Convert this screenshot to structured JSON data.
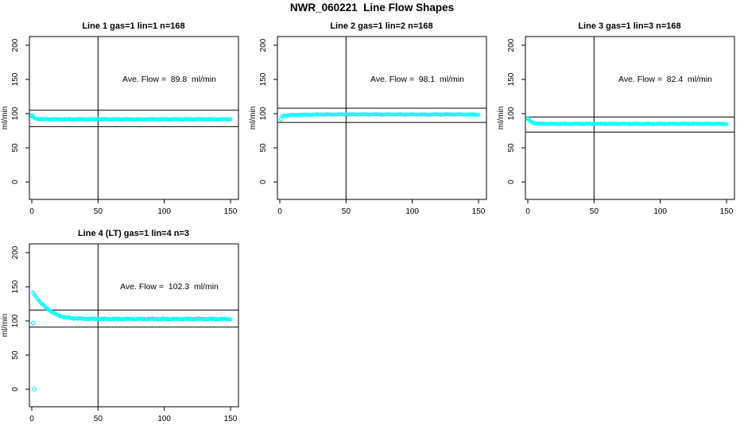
{
  "figure_title": "NWR_060221  Line Flow Shapes",
  "chart_data": {
    "type": "scatter",
    "title": "NWR_060221  Line Flow Shapes",
    "xlabel": "",
    "ylabel": "ml/min",
    "x_ticks": [
      0,
      50,
      100,
      150
    ],
    "y_ticks": [
      0,
      50,
      100,
      150,
      200
    ],
    "x_range": [
      0,
      150
    ],
    "y_range": [
      0,
      200
    ],
    "grid": false,
    "point_color": "#00FFFF",
    "line_color": "#000000",
    "vline_x": 50,
    "plots": [
      {
        "title": "Line 1 gas=1 lin=1 n=168",
        "annotation": "Ave. Flow =  89.8  ml/min",
        "ave_flow_ml_min": 89.8,
        "hlines": [
          105,
          81
        ],
        "noise": 0.5,
        "anchors": [
          [
            0,
            97
          ],
          [
            1,
            95.2
          ],
          [
            2,
            93.5
          ],
          [
            3,
            92.6
          ],
          [
            4,
            92.2
          ],
          [
            6,
            92.0
          ],
          [
            10,
            91.8
          ],
          [
            20,
            91.7
          ],
          [
            50,
            91.8
          ],
          [
            80,
            91.7
          ],
          [
            110,
            91.8
          ],
          [
            150,
            91.8
          ]
        ],
        "markers": [
          [
            0,
            97
          ]
        ]
      },
      {
        "title": "Line 2 gas=1 lin=2 n=168",
        "annotation": "Ave. Flow =  98.1  ml/min",
        "ave_flow_ml_min": 98.1,
        "hlines": [
          108,
          87
        ],
        "noise": 0.5,
        "anchors": [
          [
            2,
            96.2
          ],
          [
            4,
            97.2
          ],
          [
            8,
            97.8
          ],
          [
            15,
            98.2
          ],
          [
            30,
            98.7
          ],
          [
            60,
            98.9
          ],
          [
            100,
            98.7
          ],
          [
            130,
            98.8
          ],
          [
            150,
            98.7
          ]
        ],
        "markers": [
          [
            1,
            91.5
          ]
        ]
      },
      {
        "title": "Line 3 gas=1 lin=3 n=168",
        "annotation": "Ave. Flow =  82.4  ml/min",
        "ave_flow_ml_min": 82.4,
        "hlines": [
          95,
          73
        ],
        "noise": 0.5,
        "anchors": [
          [
            0,
            93
          ],
          [
            1,
            90.5
          ],
          [
            2,
            88.5
          ],
          [
            4,
            86.5
          ],
          [
            6,
            85.6
          ],
          [
            10,
            85.1
          ],
          [
            20,
            84.9
          ],
          [
            50,
            85.0
          ],
          [
            90,
            84.9
          ],
          [
            120,
            85.0
          ],
          [
            150,
            84.9
          ]
        ],
        "markers": [
          [
            0,
            93
          ]
        ]
      },
      {
        "title": "Line 4 (LT) gas=1 lin=4 n=3",
        "annotation": "Ave. Flow =  102.3  ml/min",
        "ave_flow_ml_min": 102.3,
        "hlines": [
          116,
          91
        ],
        "noise": 0.9,
        "anchors": [
          [
            1,
            141
          ],
          [
            2,
            138.5
          ],
          [
            3,
            136
          ],
          [
            4,
            133.5
          ],
          [
            5,
            131
          ],
          [
            6,
            128.7
          ],
          [
            7,
            126.5
          ],
          [
            8,
            124.4
          ],
          [
            9,
            122.5
          ],
          [
            10,
            120.8
          ],
          [
            12,
            117.5
          ],
          [
            14,
            114.8
          ],
          [
            16,
            112.3
          ],
          [
            18,
            110.1
          ],
          [
            20,
            108.3
          ],
          [
            22,
            107.0
          ],
          [
            25,
            105.5
          ],
          [
            28,
            104.5
          ],
          [
            32,
            103.8
          ],
          [
            38,
            103.3
          ],
          [
            45,
            103.0
          ],
          [
            60,
            102.9
          ],
          [
            80,
            103.0
          ],
          [
            100,
            102.8
          ],
          [
            125,
            102.9
          ],
          [
            150,
            102.8
          ]
        ],
        "markers": [
          [
            1,
            97
          ],
          [
            2,
            0
          ]
        ]
      }
    ]
  }
}
